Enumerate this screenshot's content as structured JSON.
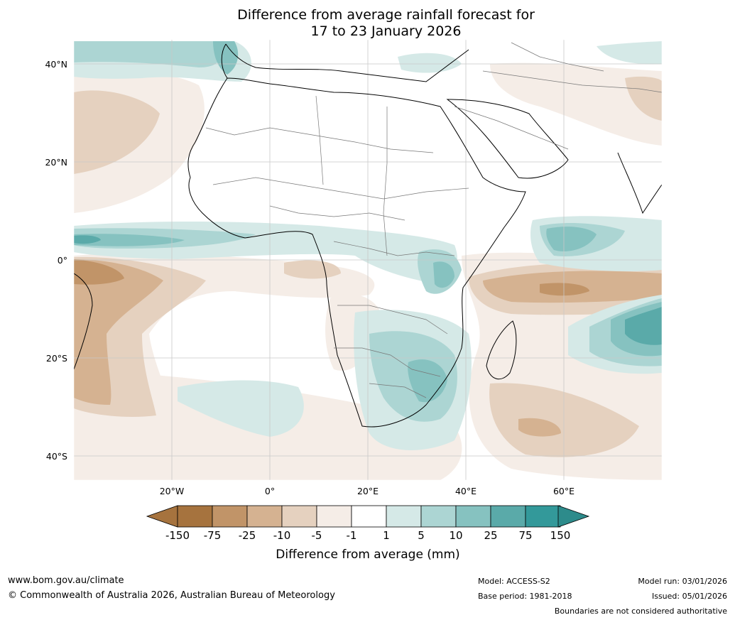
{
  "title": {
    "line1": "Difference from average rainfall forecast for",
    "line2": "17 to 23 January 2026"
  },
  "map": {
    "lat_labels": [
      "40°N",
      "20°N",
      "0°",
      "20°S",
      "40°S"
    ],
    "lon_labels": [
      "20°W",
      "0°",
      "20°E",
      "40°E",
      "60°E"
    ],
    "extent": {
      "lon_min": -40,
      "lon_max": 80,
      "lat_min": -45,
      "lat_max": 45
    }
  },
  "colorbar": {
    "labels": [
      "-150",
      "-75",
      "-25",
      "-10",
      "-5",
      "-1",
      "1",
      "5",
      "10",
      "25",
      "75",
      "150"
    ],
    "colors": [
      "#a6733e",
      "#c19468",
      "#d5b291",
      "#e5d1bf",
      "#f5ede7",
      "#ffffff",
      "#d5e9e7",
      "#acd5d3",
      "#86c2c0",
      "#5aaaa9",
      "#33999a"
    ],
    "low_extend_color": "#a6733e",
    "high_extend_color": "#2d8b8b",
    "title": "Difference from average (mm)"
  },
  "footer": {
    "website": "www.bom.gov.au/climate",
    "copyright": "© Commonwealth of Australia 2026, Australian Bureau of Meteorology",
    "model": "Model: ACCESS-S2",
    "base_period": "Base period: 1981-2018",
    "model_run": "Model run: 03/01/2026",
    "issued": "Issued: 05/01/2026",
    "disclaimer": "Boundaries are not considered authoritative"
  }
}
